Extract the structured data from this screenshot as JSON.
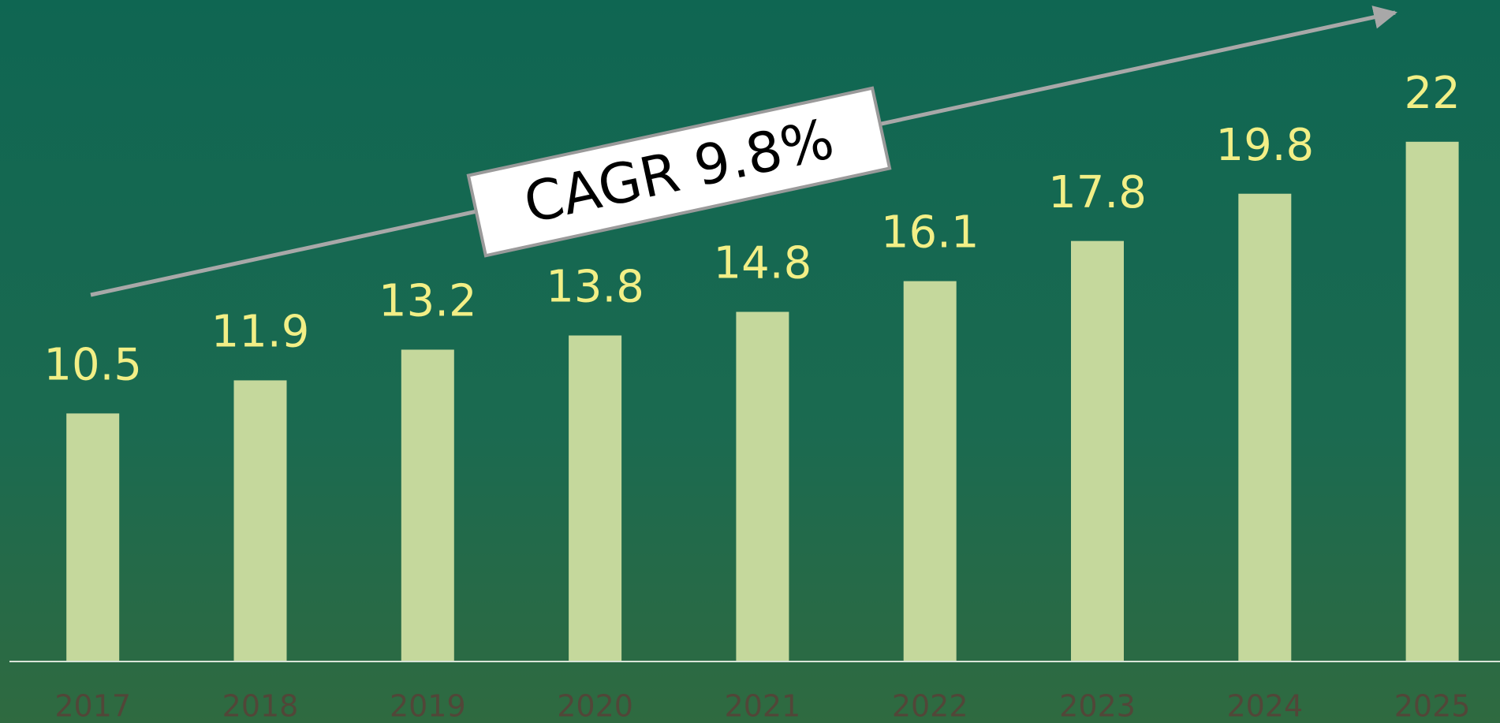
{
  "chart_data": {
    "type": "bar",
    "categories": [
      "2017",
      "2018",
      "2019",
      "2020",
      "2021",
      "2022",
      "2023",
      "2024",
      "2025"
    ],
    "values": [
      10.5,
      11.9,
      13.2,
      13.8,
      14.8,
      16.1,
      17.8,
      19.8,
      22
    ],
    "color": "#c5d89c",
    "label_color": "#f2ef86",
    "ylim": [
      0,
      28
    ],
    "annotation": "CAGR 9.8%"
  }
}
